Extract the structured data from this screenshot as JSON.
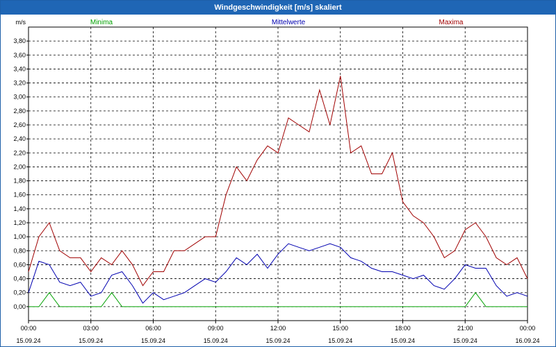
{
  "window": {
    "title": "Windgeschwindigkeit [m/s] skaliert"
  },
  "chart_data": {
    "type": "line",
    "title": "Windgeschwindigkeit [m/s] skaliert",
    "ylabel": "m/s",
    "ylim": [
      -0.2,
      4.0
    ],
    "yticks": [
      "0,00",
      "0,20",
      "0,40",
      "0,60",
      "0,80",
      "1,00",
      "1,20",
      "1,40",
      "1,60",
      "1,80",
      "2,00",
      "2,20",
      "2,40",
      "2,60",
      "2,80",
      "3,00",
      "3,20",
      "3,40",
      "3,60",
      "3,80"
    ],
    "yticks_values": [
      0,
      0.2,
      0.4,
      0.6,
      0.8,
      1.0,
      1.2,
      1.4,
      1.6,
      1.8,
      2.0,
      2.2,
      2.4,
      2.6,
      2.8,
      3.0,
      3.2,
      3.4,
      3.6,
      3.8
    ],
    "xlim_hours": [
      0,
      24
    ],
    "xticks": [
      {
        "h": 0,
        "time": "00:00",
        "date": "15.09.24"
      },
      {
        "h": 3,
        "time": "03:00",
        "date": "15.09.24"
      },
      {
        "h": 6,
        "time": "06:00",
        "date": "15.09.24"
      },
      {
        "h": 9,
        "time": "09:00",
        "date": "15.09.24"
      },
      {
        "h": 12,
        "time": "12:00",
        "date": "15.09.24"
      },
      {
        "h": 15,
        "time": "15:00",
        "date": "15.09.24"
      },
      {
        "h": 18,
        "time": "18:00",
        "date": "15.09.24"
      },
      {
        "h": 21,
        "time": "21:00",
        "date": "15.09.24"
      },
      {
        "h": 24,
        "time": "00:00",
        "date": "16.09.24"
      }
    ],
    "grid": true,
    "legend_placement": "top",
    "x_hours": [
      0,
      0.5,
      1,
      1.5,
      2,
      2.5,
      3,
      3.5,
      4,
      4.5,
      5,
      5.5,
      6,
      6.5,
      7,
      7.5,
      8,
      8.5,
      9,
      9.5,
      10,
      10.5,
      11,
      11.5,
      12,
      12.5,
      13,
      13.5,
      14,
      14.5,
      15,
      15.5,
      16,
      16.5,
      17,
      17.5,
      18,
      18.5,
      19,
      19.5,
      20,
      20.5,
      21,
      21.5,
      22,
      22.5,
      23,
      23.5,
      24
    ],
    "series": [
      {
        "name": "Minima",
        "color": "#00a000",
        "values": [
          0,
          0,
          0.2,
          0,
          0,
          0,
          0,
          0,
          0.2,
          0,
          0,
          0,
          0,
          0,
          0,
          0,
          0,
          0,
          0,
          0,
          0,
          0,
          0,
          0,
          0,
          0,
          0,
          0,
          0,
          0,
          0,
          0,
          0,
          0,
          0,
          0,
          0,
          0,
          0,
          0,
          0,
          0,
          0,
          0.2,
          0,
          0,
          0,
          0,
          0
        ]
      },
      {
        "name": "Mittelwerte",
        "color": "#0000b0",
        "values": [
          0.2,
          0.65,
          0.6,
          0.35,
          0.3,
          0.35,
          0.15,
          0.2,
          0.45,
          0.5,
          0.3,
          0.05,
          0.2,
          0.1,
          0.15,
          0.2,
          0.3,
          0.4,
          0.35,
          0.5,
          0.7,
          0.6,
          0.75,
          0.55,
          0.75,
          0.9,
          0.85,
          0.8,
          0.85,
          0.9,
          0.85,
          0.7,
          0.65,
          0.55,
          0.5,
          0.5,
          0.45,
          0.4,
          0.45,
          0.3,
          0.25,
          0.4,
          0.6,
          0.55,
          0.55,
          0.3,
          0.15,
          0.2,
          0.15
        ]
      },
      {
        "name": "Maxima",
        "color": "#a00000",
        "values": [
          0.5,
          1.0,
          1.2,
          0.8,
          0.7,
          0.7,
          0.5,
          0.7,
          0.6,
          0.8,
          0.6,
          0.3,
          0.5,
          0.5,
          0.8,
          0.8,
          0.9,
          1.0,
          1.0,
          1.6,
          2.0,
          1.8,
          2.1,
          2.3,
          2.2,
          2.7,
          2.6,
          2.5,
          3.1,
          2.6,
          3.3,
          2.2,
          2.3,
          1.9,
          1.9,
          2.2,
          1.5,
          1.3,
          1.2,
          1.0,
          0.7,
          0.8,
          1.1,
          1.2,
          1.0,
          0.7,
          0.6,
          0.7,
          0.4
        ]
      }
    ]
  }
}
